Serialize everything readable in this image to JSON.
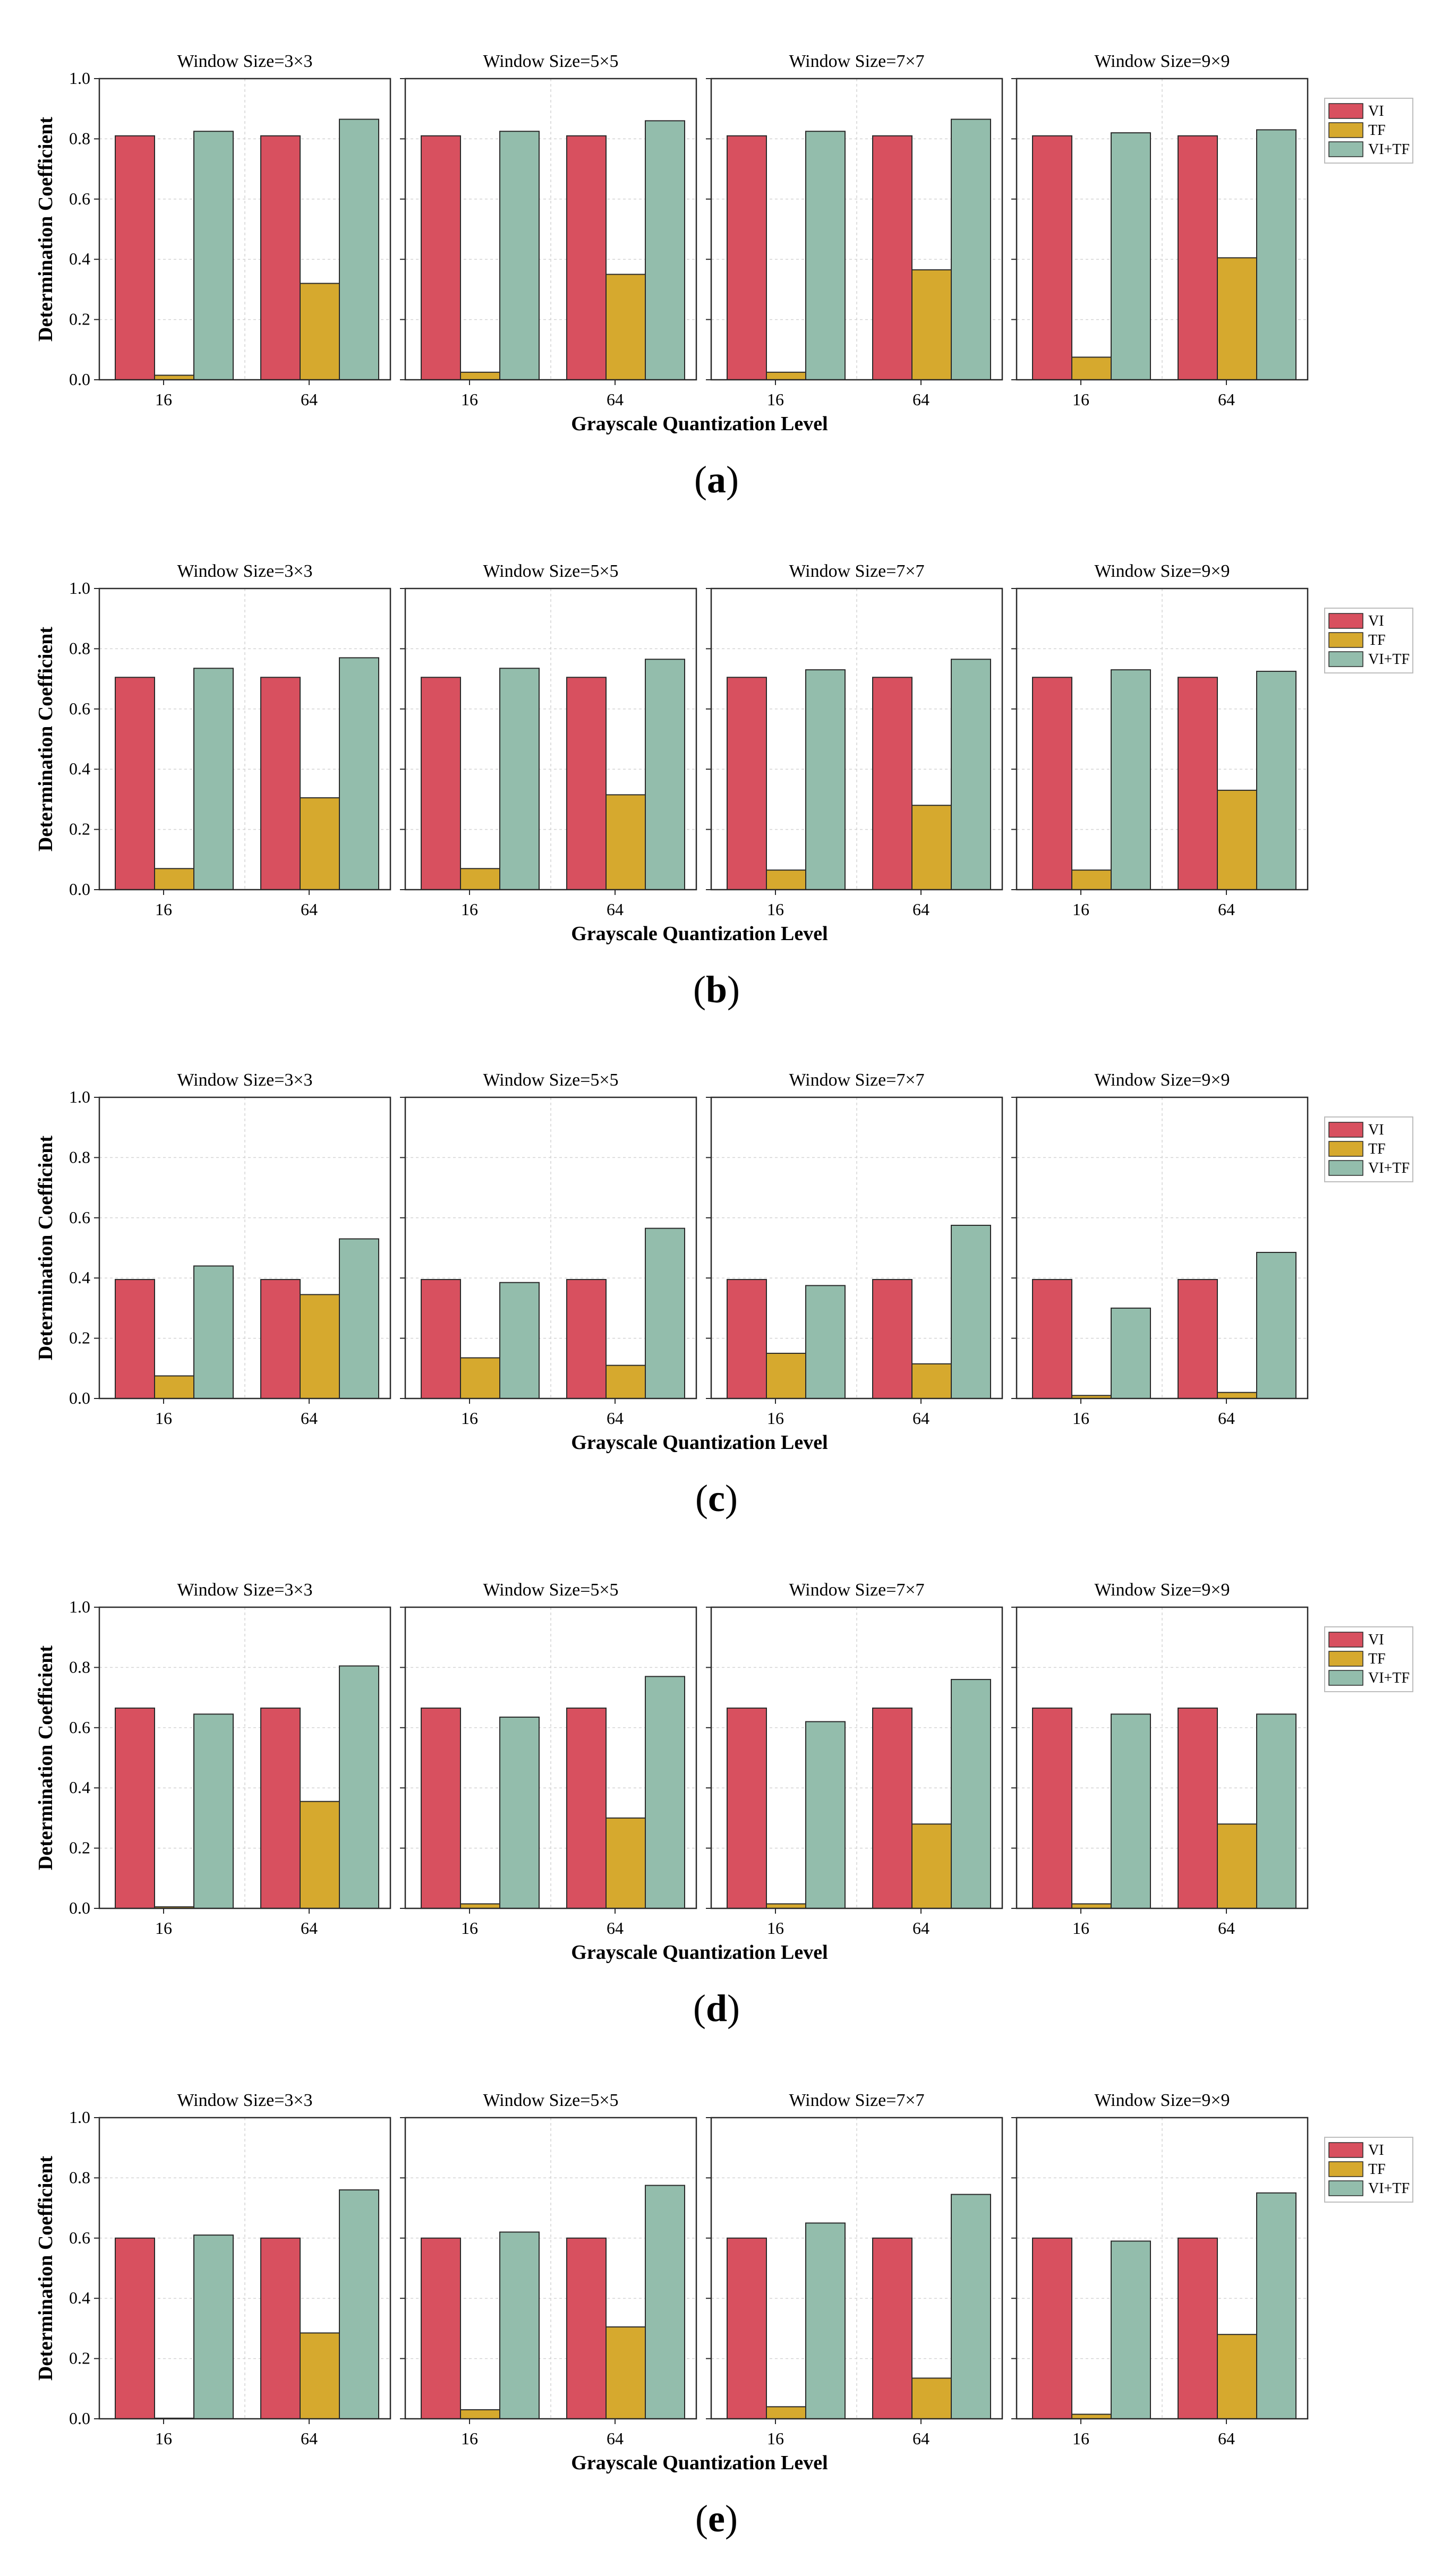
{
  "colors": {
    "VI": "#D8505F",
    "TF": "#D6A92E",
    "VI+TF": "#93BDAC",
    "edge": "#2a2a2a",
    "grid": "#d4d4d4"
  },
  "chart_data": [
    {
      "type": "bar",
      "caption": "a",
      "xlabel": "Grayscale Quantization Level",
      "ylabel": "Determination Coefficient",
      "ylim": [
        0,
        1.0
      ],
      "yticks": [
        "0.0",
        "0.2",
        "0.4",
        "0.6",
        "0.8",
        "1.0"
      ],
      "legend": [
        "VI",
        "TF",
        "VI+TF"
      ],
      "legend_position": "right",
      "grid": true,
      "panels": [
        {
          "title": "Window Size=3×3",
          "categories": [
            "16",
            "64"
          ],
          "series": [
            {
              "name": "VI",
              "values": [
                0.81,
                0.81
              ]
            },
            {
              "name": "TF",
              "values": [
                0.015,
                0.32
              ]
            },
            {
              "name": "VI+TF",
              "values": [
                0.825,
                0.865
              ]
            }
          ]
        },
        {
          "title": "Window Size=5×5",
          "categories": [
            "16",
            "64"
          ],
          "series": [
            {
              "name": "VI",
              "values": [
                0.81,
                0.81
              ]
            },
            {
              "name": "TF",
              "values": [
                0.025,
                0.35
              ]
            },
            {
              "name": "VI+TF",
              "values": [
                0.825,
                0.86
              ]
            }
          ]
        },
        {
          "title": "Window Size=7×7",
          "categories": [
            "16",
            "64"
          ],
          "series": [
            {
              "name": "VI",
              "values": [
                0.81,
                0.81
              ]
            },
            {
              "name": "TF",
              "values": [
                0.025,
                0.365
              ]
            },
            {
              "name": "VI+TF",
              "values": [
                0.825,
                0.865
              ]
            }
          ]
        },
        {
          "title": "Window Size=9×9",
          "categories": [
            "16",
            "64"
          ],
          "series": [
            {
              "name": "VI",
              "values": [
                0.81,
                0.81
              ]
            },
            {
              "name": "TF",
              "values": [
                0.075,
                0.405
              ]
            },
            {
              "name": "VI+TF",
              "values": [
                0.82,
                0.83
              ]
            }
          ]
        }
      ]
    },
    {
      "type": "bar",
      "caption": "b",
      "xlabel": "Grayscale Quantization Level",
      "ylabel": "Determination Coefficient",
      "ylim": [
        0,
        1.0
      ],
      "yticks": [
        "0.0",
        "0.2",
        "0.4",
        "0.6",
        "0.8",
        "1.0"
      ],
      "legend": [
        "VI",
        "TF",
        "VI+TF"
      ],
      "legend_position": "right",
      "grid": true,
      "panels": [
        {
          "title": "Window Size=3×3",
          "categories": [
            "16",
            "64"
          ],
          "series": [
            {
              "name": "VI",
              "values": [
                0.705,
                0.705
              ]
            },
            {
              "name": "TF",
              "values": [
                0.07,
                0.305
              ]
            },
            {
              "name": "VI+TF",
              "values": [
                0.735,
                0.77
              ]
            }
          ]
        },
        {
          "title": "Window Size=5×5",
          "categories": [
            "16",
            "64"
          ],
          "series": [
            {
              "name": "VI",
              "values": [
                0.705,
                0.705
              ]
            },
            {
              "name": "TF",
              "values": [
                0.07,
                0.315
              ]
            },
            {
              "name": "VI+TF",
              "values": [
                0.735,
                0.765
              ]
            }
          ]
        },
        {
          "title": "Window Size=7×7",
          "categories": [
            "16",
            "64"
          ],
          "series": [
            {
              "name": "VI",
              "values": [
                0.705,
                0.705
              ]
            },
            {
              "name": "TF",
              "values": [
                0.065,
                0.28
              ]
            },
            {
              "name": "VI+TF",
              "values": [
                0.73,
                0.765
              ]
            }
          ]
        },
        {
          "title": "Window Size=9×9",
          "categories": [
            "16",
            "64"
          ],
          "series": [
            {
              "name": "VI",
              "values": [
                0.705,
                0.705
              ]
            },
            {
              "name": "TF",
              "values": [
                0.065,
                0.33
              ]
            },
            {
              "name": "VI+TF",
              "values": [
                0.73,
                0.725
              ]
            }
          ]
        }
      ]
    },
    {
      "type": "bar",
      "caption": "c",
      "xlabel": "Grayscale Quantization Level",
      "ylabel": "Determination Coefficient",
      "ylim": [
        0,
        1.0
      ],
      "yticks": [
        "0.0",
        "0.2",
        "0.4",
        "0.6",
        "0.8",
        "1.0"
      ],
      "legend": [
        "VI",
        "TF",
        "VI+TF"
      ],
      "legend_position": "right",
      "grid": true,
      "panels": [
        {
          "title": "Window Size=3×3",
          "categories": [
            "16",
            "64"
          ],
          "series": [
            {
              "name": "VI",
              "values": [
                0.395,
                0.395
              ]
            },
            {
              "name": "TF",
              "values": [
                0.075,
                0.345
              ]
            },
            {
              "name": "VI+TF",
              "values": [
                0.44,
                0.53
              ]
            }
          ]
        },
        {
          "title": "Window Size=5×5",
          "categories": [
            "16",
            "64"
          ],
          "series": [
            {
              "name": "VI",
              "values": [
                0.395,
                0.395
              ]
            },
            {
              "name": "TF",
              "values": [
                0.135,
                0.11
              ]
            },
            {
              "name": "VI+TF",
              "values": [
                0.385,
                0.565
              ]
            }
          ]
        },
        {
          "title": "Window Size=7×7",
          "categories": [
            "16",
            "64"
          ],
          "series": [
            {
              "name": "VI",
              "values": [
                0.395,
                0.395
              ]
            },
            {
              "name": "TF",
              "values": [
                0.15,
                0.115
              ]
            },
            {
              "name": "VI+TF",
              "values": [
                0.375,
                0.575
              ]
            }
          ]
        },
        {
          "title": "Window Size=9×9",
          "categories": [
            "16",
            "64"
          ],
          "series": [
            {
              "name": "VI",
              "values": [
                0.395,
                0.395
              ]
            },
            {
              "name": "TF",
              "values": [
                0.01,
                0.02
              ]
            },
            {
              "name": "VI+TF",
              "values": [
                0.3,
                0.485
              ]
            }
          ]
        }
      ]
    },
    {
      "type": "bar",
      "caption": "d",
      "xlabel": "Grayscale Quantization Level",
      "ylabel": "Determination Coefficient",
      "ylim": [
        0,
        1.0
      ],
      "yticks": [
        "0.0",
        "0.2",
        "0.4",
        "0.6",
        "0.8",
        "1.0"
      ],
      "legend": [
        "VI",
        "TF",
        "VI+TF"
      ],
      "legend_position": "right",
      "grid": true,
      "panels": [
        {
          "title": "Window Size=3×3",
          "categories": [
            "16",
            "64"
          ],
          "series": [
            {
              "name": "VI",
              "values": [
                0.665,
                0.665
              ]
            },
            {
              "name": "TF",
              "values": [
                0.005,
                0.355
              ]
            },
            {
              "name": "VI+TF",
              "values": [
                0.645,
                0.805
              ]
            }
          ]
        },
        {
          "title": "Window Size=5×5",
          "categories": [
            "16",
            "64"
          ],
          "series": [
            {
              "name": "VI",
              "values": [
                0.665,
                0.665
              ]
            },
            {
              "name": "TF",
              "values": [
                0.015,
                0.3
              ]
            },
            {
              "name": "VI+TF",
              "values": [
                0.635,
                0.77
              ]
            }
          ]
        },
        {
          "title": "Window Size=7×7",
          "categories": [
            "16",
            "64"
          ],
          "series": [
            {
              "name": "VI",
              "values": [
                0.665,
                0.665
              ]
            },
            {
              "name": "TF",
              "values": [
                0.015,
                0.28
              ]
            },
            {
              "name": "VI+TF",
              "values": [
                0.62,
                0.76
              ]
            }
          ]
        },
        {
          "title": "Window Size=9×9",
          "categories": [
            "16",
            "64"
          ],
          "series": [
            {
              "name": "VI",
              "values": [
                0.665,
                0.665
              ]
            },
            {
              "name": "TF",
              "values": [
                0.015,
                0.28
              ]
            },
            {
              "name": "VI+TF",
              "values": [
                0.645,
                0.645
              ]
            }
          ]
        }
      ]
    },
    {
      "type": "bar",
      "caption": "e",
      "xlabel": "Grayscale Quantization Level",
      "ylabel": "Determination Coefficient",
      "ylim": [
        0,
        1.0
      ],
      "yticks": [
        "0.0",
        "0.2",
        "0.4",
        "0.6",
        "0.8",
        "1.0"
      ],
      "legend": [
        "VI",
        "TF",
        "VI+TF"
      ],
      "legend_position": "right",
      "grid": true,
      "panels": [
        {
          "title": "Window Size=3×3",
          "categories": [
            "16",
            "64"
          ],
          "series": [
            {
              "name": "VI",
              "values": [
                0.6,
                0.6
              ]
            },
            {
              "name": "TF",
              "values": [
                0.002,
                0.285
              ]
            },
            {
              "name": "VI+TF",
              "values": [
                0.61,
                0.76
              ]
            }
          ]
        },
        {
          "title": "Window Size=5×5",
          "categories": [
            "16",
            "64"
          ],
          "series": [
            {
              "name": "VI",
              "values": [
                0.6,
                0.6
              ]
            },
            {
              "name": "TF",
              "values": [
                0.03,
                0.305
              ]
            },
            {
              "name": "VI+TF",
              "values": [
                0.62,
                0.775
              ]
            }
          ]
        },
        {
          "title": "Window Size=7×7",
          "categories": [
            "16",
            "64"
          ],
          "series": [
            {
              "name": "VI",
              "values": [
                0.6,
                0.6
              ]
            },
            {
              "name": "TF",
              "values": [
                0.04,
                0.135
              ]
            },
            {
              "name": "VI+TF",
              "values": [
                0.65,
                0.745
              ]
            }
          ]
        },
        {
          "title": "Window Size=9×9",
          "categories": [
            "16",
            "64"
          ],
          "series": [
            {
              "name": "VI",
              "values": [
                0.6,
                0.6
              ]
            },
            {
              "name": "TF",
              "values": [
                0.015,
                0.28
              ]
            },
            {
              "name": "VI+TF",
              "values": [
                0.59,
                0.75
              ]
            }
          ]
        }
      ]
    }
  ]
}
